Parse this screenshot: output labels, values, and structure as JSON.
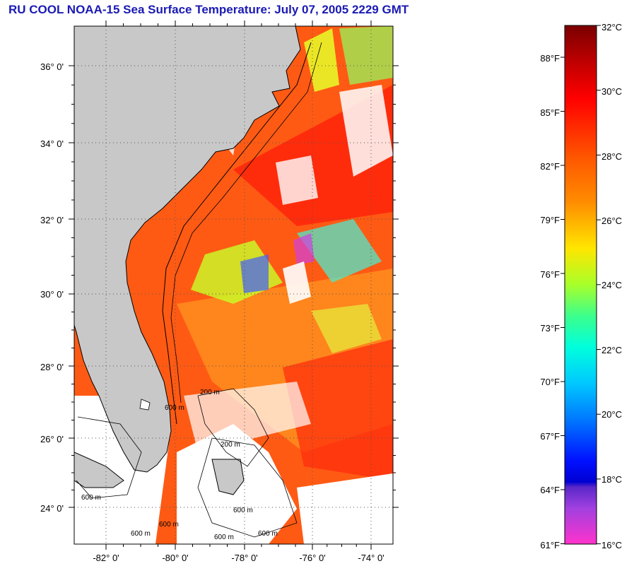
{
  "title": "RU COOL  NOAA-15  Sea Surface Temperature:  July 07, 2005 2229 GMT",
  "map": {
    "lat_labels": [
      "36° 0'",
      "34° 0'",
      "32° 0'",
      "30° 0'",
      "28° 0'",
      "26° 0'",
      "24° 0'"
    ],
    "lon_labels": [
      "-82° 0'",
      "-80° 0'",
      "-78° 0'",
      "-76° 0'",
      "-74° 0'"
    ],
    "contour_labels": [
      "200 m",
      "600 m",
      "200 m",
      "600 m",
      "600 m",
      "600 m",
      "600 m",
      "600 m",
      "600 m"
    ],
    "colors": {
      "land": "#c8c8c8",
      "cloud": "#ffffff",
      "contour": "#000000",
      "grid": "#555555"
    }
  },
  "colorbar": {
    "celsius_labels": [
      "32°C",
      "30°C",
      "28°C",
      "26°C",
      "24°C",
      "22°C",
      "20°C",
      "18°C",
      "16°C"
    ],
    "fahrenheit_labels": [
      "88°F",
      "85°F",
      "82°F",
      "79°F",
      "76°F",
      "73°F",
      "70°F",
      "67°F",
      "64°F",
      "61°F"
    ],
    "gradient_colors": [
      "#8b0000",
      "#ff0000",
      "#ff7f00",
      "#ffff00",
      "#00ff7f",
      "#00ffff",
      "#0080ff",
      "#0000ff",
      "#8000ff",
      "#ff00ff"
    ]
  }
}
